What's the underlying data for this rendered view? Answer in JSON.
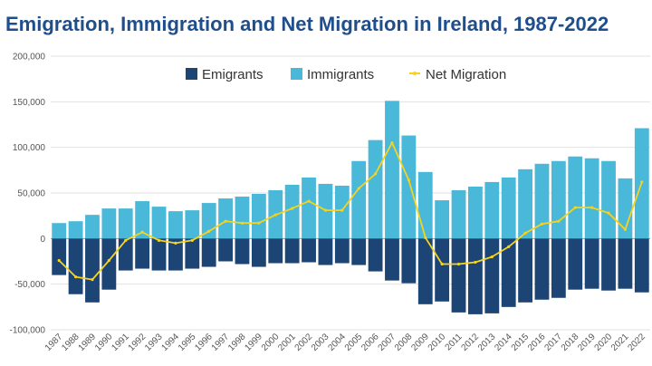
{
  "chart_data": {
    "type": "bar",
    "title": "Emigration, Immigration and Net Migration in Ireland, 1987-2022",
    "xlabel": "",
    "ylabel": "",
    "ylim": [
      -100000,
      200000
    ],
    "yticks": [
      -100000,
      -50000,
      0,
      50000,
      100000,
      150000,
      200000
    ],
    "ytick_labels": [
      "-100,000",
      "-50,000",
      "0",
      "50,000",
      "100,000",
      "150,000",
      "200,000"
    ],
    "grid": "horizontal",
    "legend_position": "top-center",
    "categories": [
      "1987",
      "1988",
      "1989",
      "1990",
      "1991",
      "1992",
      "1993",
      "1994",
      "1995",
      "1996",
      "1997",
      "1998",
      "1999",
      "2000",
      "2001",
      "2002",
      "2003",
      "2004",
      "2005",
      "2006",
      "2007",
      "2008",
      "2009",
      "2010",
      "2011",
      "2012",
      "2013",
      "2014",
      "2015",
      "2016",
      "2017",
      "2018",
      "2019",
      "2020",
      "2021",
      "2022"
    ],
    "series": [
      {
        "name": "Emigrants",
        "type": "bar",
        "color": "#1c4474",
        "values": [
          -40000,
          -61000,
          -70000,
          -56000,
          -35000,
          -33000,
          -35000,
          -35000,
          -33000,
          -31000,
          -25000,
          -28000,
          -31000,
          -27000,
          -27000,
          -26000,
          -29000,
          -27000,
          -29000,
          -36000,
          -46000,
          -49000,
          -72000,
          -69000,
          -81000,
          -83000,
          -82000,
          -75000,
          -70000,
          -67000,
          -65000,
          -56000,
          -55000,
          -57000,
          -55000,
          -59000
        ]
      },
      {
        "name": "Immigrants",
        "type": "bar",
        "color": "#4ab8d8",
        "values": [
          17000,
          19000,
          26000,
          33000,
          33000,
          41000,
          35000,
          30000,
          31000,
          39000,
          44000,
          46000,
          49000,
          53000,
          59000,
          67000,
          60000,
          58000,
          85000,
          108000,
          151000,
          113000,
          73000,
          42000,
          53000,
          57000,
          62000,
          67000,
          76000,
          82000,
          85000,
          90000,
          88000,
          85000,
          66000,
          121000
        ]
      },
      {
        "name": "Net Migration",
        "type": "line",
        "color": "#f5d31e",
        "values": [
          -24000,
          -42000,
          -45000,
          -24000,
          -2000,
          7000,
          -2000,
          -5000,
          -2000,
          8000,
          19000,
          17000,
          17000,
          26000,
          33000,
          41000,
          31000,
          31000,
          55000,
          71000,
          105000,
          64000,
          1000,
          -28000,
          -28000,
          -26000,
          -20000,
          -9000,
          6000,
          16000,
          19000,
          34000,
          34000,
          28000,
          10000,
          62000
        ]
      }
    ]
  }
}
